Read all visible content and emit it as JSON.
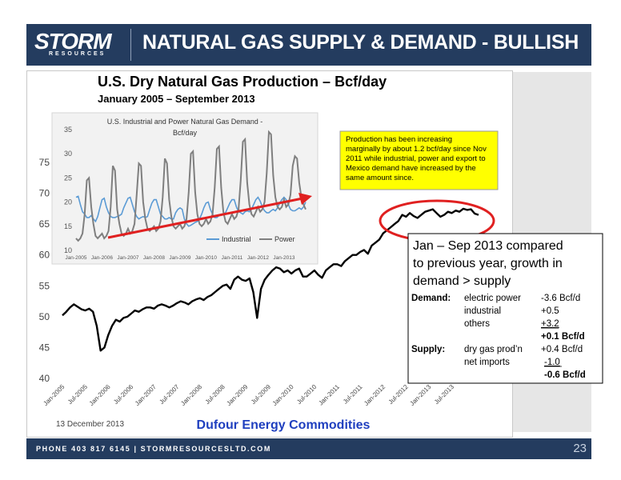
{
  "header": {
    "logo_main": "STORM",
    "logo_sub": "RESOURCES",
    "title": "NATURAL GAS SUPPLY & DEMAND - BULLISH"
  },
  "footer": {
    "text": "PHONE 403 817 6145  |  STORMRESOURCESLTD.COM",
    "page_number": "23"
  },
  "colors": {
    "navy": "#243c5f",
    "production_line": "#000000",
    "industrial_line": "#5b9bd5",
    "power_line": "#7f7f7f",
    "trend_arrow": "#e02020",
    "callout_bg": "#ffff00",
    "highlight_circle": "#e02020",
    "source_text": "#1f3fbf"
  },
  "chart_data": [
    {
      "type": "line",
      "title": "U.S. Dry Natural Gas Production – Bcf/day",
      "subtitle": "January 2005 – September 2013",
      "ylim": [
        40,
        75
      ],
      "yticks": [
        "40",
        "45",
        "50",
        "55",
        "60",
        "65",
        "70",
        "75"
      ],
      "xticks": [
        "Jan-2005",
        "Jul-2005",
        "Jan-2006",
        "Jul-2006",
        "Jan-2007",
        "Jul-2007",
        "Jan-2008",
        "Jul-2008",
        "Jan-2009",
        "Jul-2009",
        "Jan-2010",
        "Jul-2010",
        "Jan-2011",
        "Jul-2011",
        "Jan-2012",
        "Jul-2012",
        "Jan-2013",
        "Jul-2013"
      ],
      "grid": false,
      "series": [
        {
          "values": [
            50.2,
            50.8,
            51.5,
            52.0,
            51.6,
            51.2,
            51.0,
            51.3,
            50.8,
            48.5,
            44.5,
            45.0,
            47.0,
            48.5,
            49.5,
            49.2,
            49.8,
            50.0,
            50.5,
            51.0,
            50.8,
            51.2,
            51.5,
            51.5,
            51.3,
            51.8,
            52.0,
            51.8,
            51.5,
            51.8,
            52.2,
            52.5,
            52.3,
            52.0,
            52.5,
            52.8,
            53.0,
            52.7,
            53.2,
            53.5,
            54.0,
            54.5,
            55.0,
            55.2,
            54.5,
            56.0,
            56.5,
            56.0,
            55.8,
            56.2,
            54.0,
            49.8,
            54.5,
            56.0,
            56.8,
            57.5,
            58.0,
            57.8,
            57.2,
            57.5,
            57.0,
            57.5,
            57.8,
            56.5,
            56.5,
            57.0,
            57.5,
            56.8,
            56.3,
            57.5,
            58.0,
            58.5,
            58.5,
            58.2,
            59.0,
            59.5,
            60.0,
            60.0,
            60.5,
            60.8,
            60.2,
            61.5,
            62.0,
            62.5,
            63.5,
            64.0,
            64.5,
            65.0,
            65.5,
            66.5,
            66.2,
            66.8,
            66.3,
            66.0,
            66.5,
            67.0,
            67.2,
            67.4,
            66.8,
            66.2,
            66.5,
            67.0,
            66.8,
            67.2,
            67.0,
            67.5,
            67.3,
            67.4,
            66.7,
            66.5
          ]
        }
      ],
      "source_date": "13 December 2013",
      "source": "Dufour Energy Commodities",
      "annotation": "Production has been increasing marginally by about 1.2 bcf/day since Nov 2011 while industrial, power and export to Mexico demand have increased by the same amount since."
    },
    {
      "type": "line",
      "title": "U.S. Industrial and Power Natural Gas Demand - Bcf/day",
      "ylim": [
        10,
        35
      ],
      "yticks": [
        "10",
        "15",
        "20",
        "25",
        "30",
        "35"
      ],
      "xticks": [
        "Jan-2005",
        "Jan-2006",
        "Jan-2007",
        "Jan-2008",
        "Jan-2009",
        "Jan-2010",
        "Jan-2011",
        "Jan-2012",
        "Jan-2013"
      ],
      "legend": "bottom",
      "series": [
        {
          "name": "Industrial",
          "values": [
            21.0,
            21.2,
            19.5,
            18.0,
            17.5,
            16.8,
            16.8,
            17.2,
            16.5,
            16.0,
            17.0,
            18.8,
            20.5,
            20.8,
            19.0,
            17.8,
            17.0,
            16.8,
            16.8,
            17.0,
            17.2,
            17.5,
            18.8,
            19.8,
            20.8,
            21.0,
            19.5,
            18.0,
            17.0,
            16.5,
            16.8,
            17.0,
            16.8,
            17.0,
            18.5,
            19.8,
            20.5,
            20.5,
            19.0,
            17.5,
            17.0,
            16.5,
            16.5,
            16.8,
            16.5,
            16.5,
            17.8,
            18.5,
            18.8,
            18.5,
            16.5,
            15.5,
            15.0,
            15.2,
            15.5,
            15.8,
            16.0,
            16.5,
            17.5,
            18.8,
            19.8,
            20.0,
            18.5,
            17.5,
            16.8,
            16.8,
            17.2,
            17.5,
            17.5,
            17.8,
            18.8,
            19.8,
            20.5,
            20.5,
            19.0,
            18.0,
            17.8,
            17.5,
            18.0,
            18.2,
            18.0,
            18.5,
            19.5,
            20.5,
            21.0,
            20.2,
            19.0,
            18.2,
            17.8,
            17.8,
            18.2,
            18.5,
            18.2,
            18.8,
            19.8,
            20.5,
            21.0,
            20.5,
            19.5,
            18.5,
            18.2,
            18.2,
            18.5,
            18.8,
            18.5,
            19.0,
            20.0
          ]
        },
        {
          "name": "Power",
          "values": [
            12.5,
            12.0,
            12.5,
            13.5,
            17.5,
            24.5,
            25.0,
            19.0,
            15.5,
            13.0,
            12.5,
            13.0,
            13.5,
            12.5,
            13.0,
            14.0,
            19.0,
            27.5,
            26.5,
            18.5,
            15.5,
            13.5,
            13.0,
            13.5,
            14.5,
            13.5,
            14.0,
            15.5,
            21.5,
            28.0,
            27.5,
            20.0,
            16.5,
            14.5,
            14.0,
            14.5,
            15.0,
            14.0,
            14.5,
            16.0,
            21.0,
            29.0,
            28.0,
            20.5,
            17.0,
            15.0,
            14.5,
            15.0,
            15.5,
            14.5,
            15.0,
            16.5,
            22.0,
            30.0,
            30.5,
            22.0,
            17.5,
            15.5,
            15.0,
            15.5,
            16.5,
            15.5,
            16.0,
            17.5,
            23.0,
            31.0,
            31.5,
            23.0,
            18.0,
            16.0,
            15.5,
            16.5,
            17.5,
            16.5,
            17.0,
            18.5,
            24.5,
            32.5,
            33.0,
            24.0,
            19.5,
            17.5,
            17.0,
            18.0,
            19.0,
            18.0,
            18.5,
            20.0,
            26.0,
            34.5,
            34.0,
            25.5,
            21.0,
            19.0,
            18.5,
            19.0,
            20.5,
            19.0,
            19.5,
            21.5,
            27.5,
            29.5,
            29.0,
            24.0,
            21.0,
            19.5,
            18.5
          ]
        }
      ]
    }
  ],
  "callout": {
    "heading": "Jan – Sep 2013 compared to previous year, growth in demand > supply",
    "demand_label": "Demand:",
    "electric_power": "electric power",
    "electric_power_value": "-3.6 Bcf/d",
    "industrial": "industrial",
    "industrial_value": "+0.5",
    "others": "others",
    "others_value": "+3.2",
    "demand_total": "+0.1 Bcf/d",
    "supply_label": "Supply:",
    "dry_gas": "dry gas prod’n",
    "dry_gas_value": "+0.4 Bcf/d",
    "net_imports": "net imports",
    "net_imports_value": "-1.0",
    "supply_total": "-0.6 Bcf/d"
  }
}
